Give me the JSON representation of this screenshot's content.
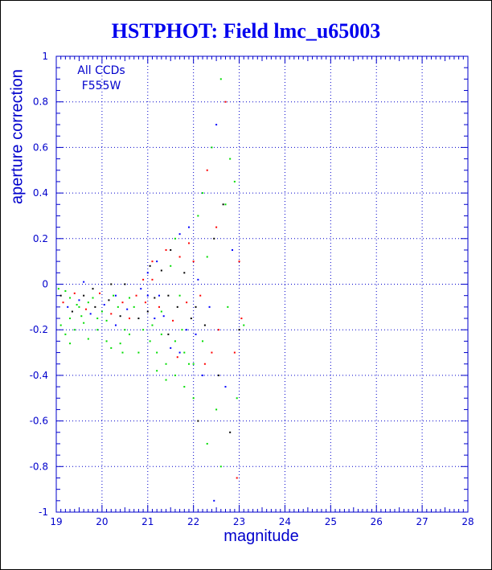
{
  "title": "HSTPHOT: Field lmc_u65003",
  "chart_data": {
    "type": "scatter",
    "xlabel": "magnitude",
    "ylabel": "aperture correction",
    "xlim": [
      19,
      28
    ],
    "ylim": [
      -1,
      1
    ],
    "xticks": [
      "19",
      "20",
      "21",
      "22",
      "23",
      "24",
      "25",
      "26",
      "27",
      "28"
    ],
    "yticks": [
      "-1",
      "-0.8",
      "-0.6",
      "-0.4",
      "-0.2",
      "0",
      "0.2",
      "0.4",
      "0.6",
      "0.8",
      "1"
    ],
    "grid": true,
    "annotations": [
      "All CCDs",
      "F555W"
    ],
    "series_colors": [
      "#000000",
      "#ff0000",
      "#00dd00",
      "#0000ff"
    ],
    "points": [
      [
        19.05,
        -0.02,
        2
      ],
      [
        19.1,
        -0.05,
        0
      ],
      [
        19.15,
        -0.08,
        1
      ],
      [
        19.2,
        -0.03,
        2
      ],
      [
        19.25,
        -0.1,
        3
      ],
      [
        19.3,
        -0.06,
        2
      ],
      [
        19.35,
        -0.12,
        0
      ],
      [
        19.4,
        -0.04,
        1
      ],
      [
        19.45,
        -0.09,
        2
      ],
      [
        19.5,
        -0.07,
        3
      ],
      [
        19.55,
        -0.14,
        2
      ],
      [
        19.6,
        -0.05,
        0
      ],
      [
        19.65,
        -0.11,
        1
      ],
      [
        19.7,
        -0.08,
        2
      ],
      [
        19.75,
        -0.13,
        3
      ],
      [
        19.8,
        -0.06,
        2
      ],
      [
        19.85,
        -0.1,
        0
      ],
      [
        19.9,
        -0.15,
        2
      ],
      [
        19.95,
        -0.04,
        1
      ],
      [
        20.0,
        -0.12,
        2
      ],
      [
        20.05,
        -0.09,
        3
      ],
      [
        20.1,
        -0.16,
        2
      ],
      [
        20.15,
        -0.07,
        0
      ],
      [
        20.2,
        -0.13,
        1
      ],
      [
        20.25,
        -0.05,
        2
      ],
      [
        20.3,
        -0.18,
        3
      ],
      [
        20.35,
        -0.1,
        2
      ],
      [
        20.4,
        -0.14,
        0
      ],
      [
        20.45,
        -0.08,
        1
      ],
      [
        20.5,
        -0.2,
        2
      ],
      [
        20.55,
        -0.11,
        3
      ],
      [
        20.6,
        -0.06,
        2
      ],
      [
        19.1,
        -0.18,
        2
      ],
      [
        19.2,
        -0.22,
        2
      ],
      [
        19.3,
        -0.15,
        2
      ],
      [
        19.4,
        -0.2,
        2
      ],
      [
        19.6,
        -0.17,
        2
      ],
      [
        19.7,
        -0.24,
        2
      ],
      [
        19.9,
        -0.2,
        2
      ],
      [
        20.1,
        -0.25,
        2
      ],
      [
        19.3,
        -0.26,
        2
      ],
      [
        19.5,
        -0.1,
        2
      ],
      [
        20.4,
        -0.26,
        2
      ],
      [
        20.6,
        -0.22,
        2
      ],
      [
        19.8,
        -0.02,
        0
      ],
      [
        20.2,
        0.0,
        0
      ],
      [
        20.5,
        0.0,
        0
      ],
      [
        19.6,
        0.01,
        3
      ],
      [
        20.7,
        -0.1,
        2
      ],
      [
        20.75,
        -0.05,
        1
      ],
      [
        20.8,
        -0.15,
        0
      ],
      [
        20.85,
        -0.02,
        3
      ],
      [
        20.9,
        -0.2,
        2
      ],
      [
        20.95,
        -0.08,
        1
      ],
      [
        21.0,
        -0.12,
        0
      ],
      [
        21.0,
        0.05,
        3
      ],
      [
        21.05,
        -0.25,
        2
      ],
      [
        21.1,
        0.02,
        1
      ],
      [
        21.1,
        -0.18,
        2
      ],
      [
        21.15,
        -0.06,
        0
      ],
      [
        21.2,
        0.1,
        3
      ],
      [
        21.2,
        -0.3,
        2
      ],
      [
        21.25,
        -0.1,
        1
      ],
      [
        21.3,
        0.06,
        0
      ],
      [
        21.3,
        -0.22,
        2
      ],
      [
        21.35,
        -0.14,
        3
      ],
      [
        21.4,
        0.15,
        1
      ],
      [
        21.4,
        -0.35,
        2
      ],
      [
        21.45,
        -0.05,
        0
      ],
      [
        21.5,
        0.08,
        2
      ],
      [
        21.5,
        -0.28,
        3
      ],
      [
        21.55,
        -0.16,
        1
      ],
      [
        21.6,
        0.2,
        2
      ],
      [
        21.6,
        -0.4,
        2
      ],
      [
        21.65,
        -0.1,
        0
      ],
      [
        21.7,
        0.12,
        1
      ],
      [
        21.7,
        -0.3,
        3
      ],
      [
        21.75,
        -0.2,
        2
      ],
      [
        21.8,
        0.05,
        0
      ],
      [
        21.8,
        -0.45,
        2
      ],
      [
        21.85,
        -0.08,
        1
      ],
      [
        21.9,
        0.25,
        3
      ],
      [
        21.9,
        -0.35,
        2
      ],
      [
        21.95,
        -0.15,
        0
      ],
      [
        22.0,
        0.1,
        1
      ],
      [
        22.0,
        -0.5,
        2
      ],
      [
        22.05,
        -0.22,
        3
      ],
      [
        22.1,
        0.3,
        2
      ],
      [
        22.1,
        -0.6,
        0
      ],
      [
        22.15,
        -0.05,
        1
      ],
      [
        22.2,
        0.4,
        2
      ],
      [
        22.2,
        -0.4,
        3
      ],
      [
        22.25,
        -0.18,
        0
      ],
      [
        22.3,
        0.5,
        1
      ],
      [
        22.3,
        -0.7,
        2
      ],
      [
        22.35,
        -0.1,
        3
      ],
      [
        22.4,
        0.6,
        2
      ],
      [
        22.4,
        -0.3,
        1
      ],
      [
        22.45,
        0.2,
        0
      ],
      [
        22.5,
        -0.55,
        2
      ],
      [
        22.5,
        0.7,
        3
      ],
      [
        22.55,
        -0.2,
        1
      ],
      [
        22.6,
        0.9,
        2
      ],
      [
        22.6,
        -0.8,
        2
      ],
      [
        22.65,
        0.35,
        0
      ],
      [
        22.7,
        -0.45,
        3
      ],
      [
        22.7,
        0.8,
        1
      ],
      [
        22.75,
        -0.1,
        2
      ],
      [
        22.8,
        0.55,
        2
      ],
      [
        22.8,
        -0.65,
        0
      ],
      [
        22.85,
        0.15,
        3
      ],
      [
        22.9,
        -0.3,
        1
      ],
      [
        22.9,
        0.45,
        2
      ],
      [
        22.95,
        -0.5,
        2
      ],
      [
        23.0,
        0.1,
        1
      ],
      [
        23.0,
        -0.2,
        0
      ],
      [
        23.05,
        -0.15,
        1
      ],
      [
        23.1,
        -0.18,
        2
      ],
      [
        22.95,
        -0.85,
        1
      ],
      [
        22.45,
        -0.95,
        3
      ],
      [
        21.6,
        -0.25,
        2
      ],
      [
        21.7,
        -0.05,
        2
      ],
      [
        21.2,
        -0.38,
        2
      ],
      [
        21.4,
        -0.42,
        2
      ],
      [
        21.8,
        -0.3,
        2
      ],
      [
        21.3,
        -0.12,
        2
      ],
      [
        22.0,
        -0.35,
        2
      ],
      [
        22.2,
        -0.25,
        2
      ],
      [
        21.1,
        0.1,
        1
      ],
      [
        21.5,
        0.15,
        0
      ],
      [
        21.7,
        0.22,
        3
      ],
      [
        21.9,
        0.18,
        1
      ],
      [
        22.1,
        0.02,
        3
      ],
      [
        22.3,
        0.12,
        2
      ],
      [
        22.5,
        0.25,
        1
      ],
      [
        22.7,
        0.35,
        2
      ],
      [
        21.0,
        -0.05,
        3
      ],
      [
        21.15,
        -0.15,
        3
      ],
      [
        21.45,
        -0.22,
        0
      ],
      [
        21.65,
        -0.32,
        1
      ],
      [
        21.85,
        -0.2,
        3
      ],
      [
        22.05,
        -0.1,
        0
      ],
      [
        22.25,
        -0.35,
        1
      ],
      [
        22.55,
        -0.4,
        0
      ],
      [
        20.2,
        -0.28,
        2
      ],
      [
        20.45,
        -0.3,
        2
      ],
      [
        20.3,
        -0.05,
        3
      ],
      [
        20.6,
        -0.15,
        1
      ],
      [
        20.9,
        0.02,
        1
      ],
      [
        20.8,
        -0.3,
        2
      ],
      [
        21.05,
        0.08,
        0
      ],
      [
        21.25,
        -0.05,
        3
      ]
    ]
  }
}
